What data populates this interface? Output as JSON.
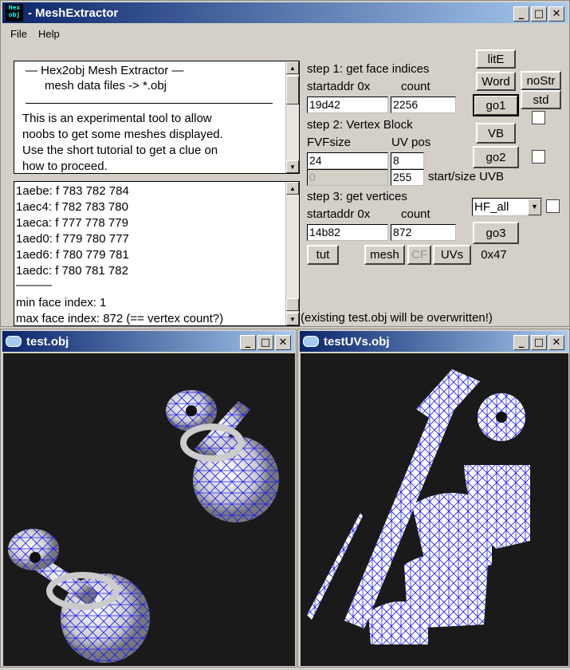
{
  "main": {
    "title": "MeshExtractor",
    "menu": [
      "File",
      "Help"
    ],
    "info": {
      "line1": "—   Hex2obj Mesh Extractor   —",
      "line2": "mesh data files -> *.obj",
      "body": [
        "This is an experimental tool to allow",
        "noobs to get some meshes displayed.",
        "Use the short tutorial to get a clue on",
        "how to proceed."
      ]
    },
    "log": {
      "lines": [
        "1aebe: f  783 782 784",
        "1aec4: f  782 783 780",
        "1aeca: f  777 778 779",
        "1aed0: f  779 780 777",
        "1aed6: f  780 779 781",
        "1aedc: f  780 781 782"
      ],
      "sep": "———",
      "min": "min face index: 1",
      "max": "max face index: 872 (== vertex count?)"
    },
    "step1": {
      "title": "step 1: get face indices",
      "sub1": "startaddr 0x",
      "sub2": "count",
      "addr": "19d42",
      "count": "2256"
    },
    "step2": {
      "title": "step 2: Vertex Block",
      "sub1": "FVFsize",
      "sub2": "UV pos",
      "fvf": "24",
      "uv": "8",
      "start": "0",
      "size": "255",
      "uvb": "start/size UVB"
    },
    "step3": {
      "title": "step 3: get vertices",
      "sub1": "startaddr 0x",
      "sub2": "count",
      "addr": "14b82",
      "count": "872"
    },
    "buttons": {
      "litE": "litE",
      "word": "Word",
      "nostr": "noStr",
      "std": "std",
      "go1": "go1",
      "vb": "VB",
      "go2": "go2",
      "go3": "go3",
      "tut": "tut",
      "mesh": "mesh",
      "cf": "CF",
      "uvs": "UVs"
    },
    "combo": "HF_all",
    "hex": "0x47",
    "status": "(existing test.obj will be overwritten!)"
  },
  "win1": {
    "title": "test.obj"
  },
  "win2": {
    "title": "testUVs.obj"
  }
}
